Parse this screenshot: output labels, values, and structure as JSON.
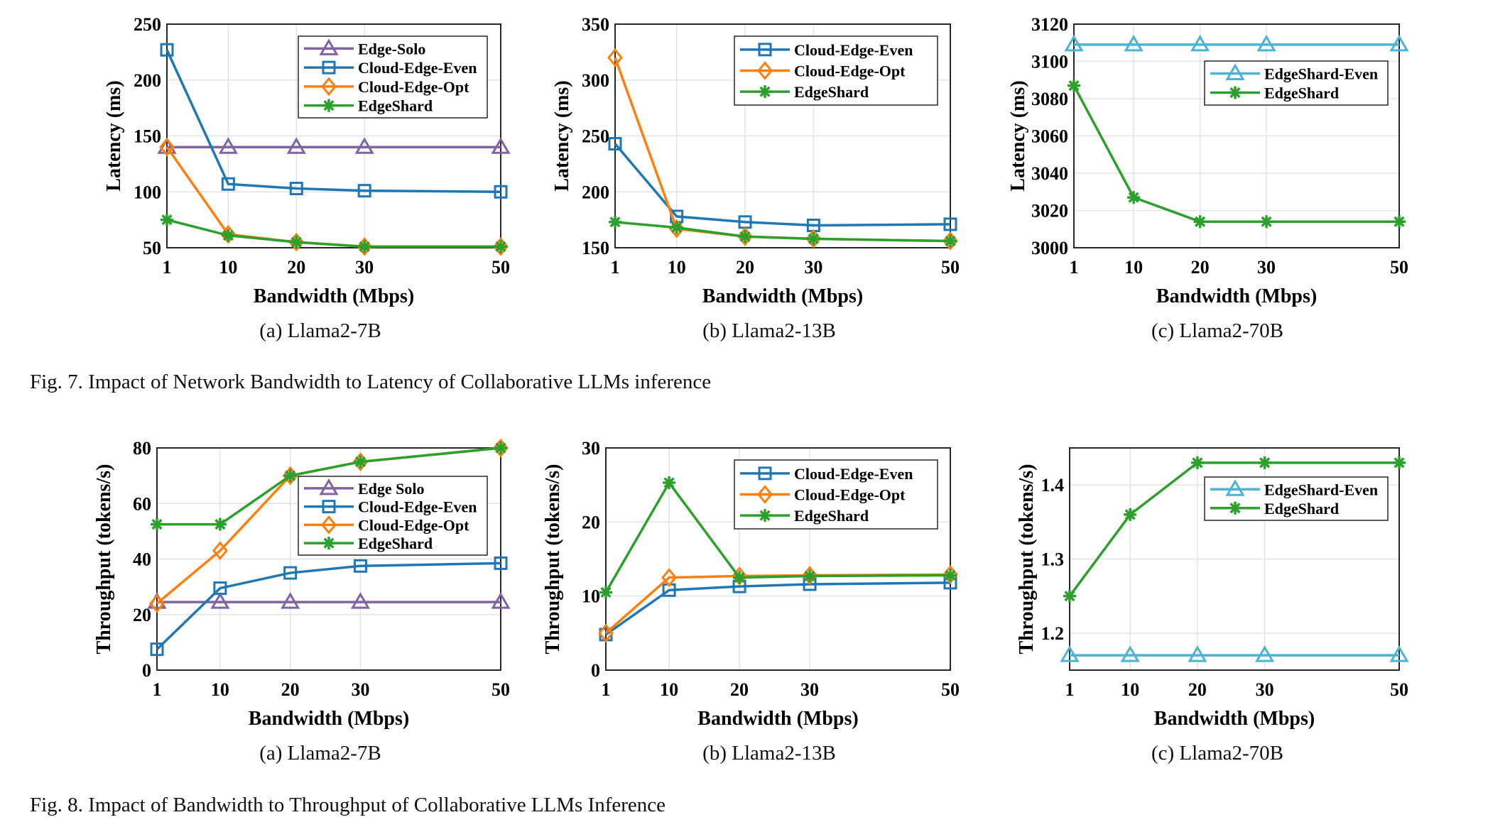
{
  "colors": {
    "Edge-Solo": "#8064A2",
    "Edge Solo": "#8064A2",
    "Cloud-Edge-Even": "#1F77B4",
    "Cloud-Edge-Opt": "#FF7F0E",
    "EdgeShard": "#2CA02C",
    "EdgeShard-Even": "#4DB3D0"
  },
  "markers": {
    "Edge-Solo": "triangle",
    "Edge Solo": "triangle",
    "Cloud-Edge-Even": "square",
    "Cloud-Edge-Opt": "diamond",
    "EdgeShard": "asterisk",
    "EdgeShard-Even": "triangle"
  },
  "figures": [
    {
      "caption": "Fig. 7.  Impact of Network Bandwidth to Latency of Collaborative LLMs inference",
      "subcaptions": [
        "(a)  Llama2-7B",
        "(b)  Llama2-13B",
        "(c)  Llama2-70B"
      ]
    },
    {
      "caption": "Fig. 8.  Impact of Bandwidth to Throughput of Collaborative LLMs Inference",
      "subcaptions": [
        "(a)  Llama2-7B",
        "(b)  Llama2-13B",
        "(c)  Llama2-70B"
      ]
    }
  ],
  "chart_data": [
    {
      "type": "line",
      "xlabel": "Bandwidth (Mbps)",
      "ylabel": "Latency (ms)",
      "x": [
        1,
        10,
        20,
        30,
        50
      ],
      "xticks": [
        "1",
        "10",
        "20",
        "30",
        "50"
      ],
      "xlim": [
        1,
        50
      ],
      "ylim": [
        50,
        250
      ],
      "yticks": [
        "50",
        "100",
        "150",
        "200",
        "250"
      ],
      "grid": true,
      "legend": "top-right",
      "series": [
        {
          "name": "Edge-Solo",
          "values": [
            140,
            140,
            140,
            140,
            140
          ]
        },
        {
          "name": "Cloud-Edge-Even",
          "values": [
            227,
            107,
            103,
            101,
            100
          ]
        },
        {
          "name": "Cloud-Edge-Opt",
          "values": [
            140,
            62,
            55,
            51,
            51
          ]
        },
        {
          "name": "EdgeShard",
          "values": [
            75,
            61,
            55,
            51,
            51
          ]
        }
      ]
    },
    {
      "type": "line",
      "xlabel": "Bandwidth (Mbps)",
      "ylabel": "Latency (ms)",
      "x": [
        1,
        10,
        20,
        30,
        50
      ],
      "xticks": [
        "1",
        "10",
        "20",
        "30",
        "50"
      ],
      "xlim": [
        1,
        50
      ],
      "ylim": [
        150,
        350
      ],
      "yticks": [
        "150",
        "200",
        "250",
        "300",
        "350"
      ],
      "grid": true,
      "legend": "top-right",
      "series": [
        {
          "name": "Cloud-Edge-Even",
          "values": [
            243,
            178,
            173,
            170,
            171
          ]
        },
        {
          "name": "Cloud-Edge-Opt",
          "values": [
            320,
            167,
            160,
            158,
            156
          ]
        },
        {
          "name": "EdgeShard",
          "values": [
            173,
            168,
            160,
            158,
            156
          ]
        }
      ]
    },
    {
      "type": "line",
      "xlabel": "Bandwidth (Mbps)",
      "ylabel": "Latency (ms)",
      "x": [
        1,
        10,
        20,
        30,
        50
      ],
      "xticks": [
        "1",
        "10",
        "20",
        "30",
        "50"
      ],
      "xlim": [
        1,
        50
      ],
      "ylim": [
        3000,
        3120
      ],
      "yticks": [
        "3000",
        "3020",
        "3040",
        "3060",
        "3080",
        "3100",
        "3120"
      ],
      "grid": true,
      "legend": "top-right",
      "series": [
        {
          "name": "EdgeShard-Even",
          "values": [
            3109,
            3109,
            3109,
            3109,
            3109
          ]
        },
        {
          "name": "EdgeShard",
          "values": [
            3087,
            3027,
            3014,
            3014,
            3014
          ]
        }
      ]
    },
    {
      "type": "line",
      "xlabel": "Bandwidth (Mbps)",
      "ylabel": "Throughput (tokens/s)",
      "x": [
        1,
        10,
        20,
        30,
        50
      ],
      "xticks": [
        "1",
        "10",
        "20",
        "30",
        "50"
      ],
      "xlim": [
        1,
        50
      ],
      "ylim": [
        0,
        80
      ],
      "yticks": [
        "0",
        "20",
        "40",
        "60",
        "80"
      ],
      "grid": true,
      "legend": "right",
      "series": [
        {
          "name": "Edge Solo",
          "values": [
            24.5,
            24.5,
            24.5,
            24.5,
            24.5
          ]
        },
        {
          "name": "Cloud-Edge-Even",
          "values": [
            7.5,
            29.5,
            35,
            37.5,
            38.5
          ]
        },
        {
          "name": "Cloud-Edge-Opt",
          "values": [
            24,
            43,
            70,
            75,
            80
          ]
        },
        {
          "name": "EdgeShard",
          "values": [
            52.5,
            52.5,
            70,
            75,
            80
          ]
        }
      ]
    },
    {
      "type": "line",
      "xlabel": "Bandwidth (Mbps)",
      "ylabel": "Throughput (tokens/s)",
      "x": [
        1,
        10,
        20,
        30,
        50
      ],
      "xticks": [
        "1",
        "10",
        "20",
        "30",
        "50"
      ],
      "xlim": [
        1,
        50
      ],
      "ylim": [
        0,
        30
      ],
      "yticks": [
        "0",
        "10",
        "20",
        "30"
      ],
      "grid": true,
      "legend": "top-right",
      "series": [
        {
          "name": "Cloud-Edge-Even",
          "values": [
            4.8,
            10.8,
            11.3,
            11.6,
            11.8
          ]
        },
        {
          "name": "Cloud-Edge-Opt",
          "values": [
            5,
            12.5,
            12.7,
            12.8,
            12.9
          ]
        },
        {
          "name": "EdgeShard",
          "values": [
            10.5,
            25.3,
            12.5,
            12.7,
            12.8
          ]
        }
      ]
    },
    {
      "type": "line",
      "xlabel": "Bandwidth (Mbps)",
      "ylabel": "Throughput (tokens/s)",
      "x": [
        1,
        10,
        20,
        30,
        50
      ],
      "xticks": [
        "1",
        "10",
        "20",
        "30",
        "50"
      ],
      "xlim": [
        1,
        50
      ],
      "ylim": [
        1.15,
        1.45
      ],
      "yticks": [
        "1.2",
        "1.3",
        "1.4"
      ],
      "grid": true,
      "legend": "top-right",
      "series": [
        {
          "name": "EdgeShard-Even",
          "values": [
            1.17,
            1.17,
            1.17,
            1.17,
            1.17
          ]
        },
        {
          "name": "EdgeShard",
          "values": [
            1.25,
            1.36,
            1.43,
            1.43,
            1.43
          ]
        }
      ]
    }
  ]
}
